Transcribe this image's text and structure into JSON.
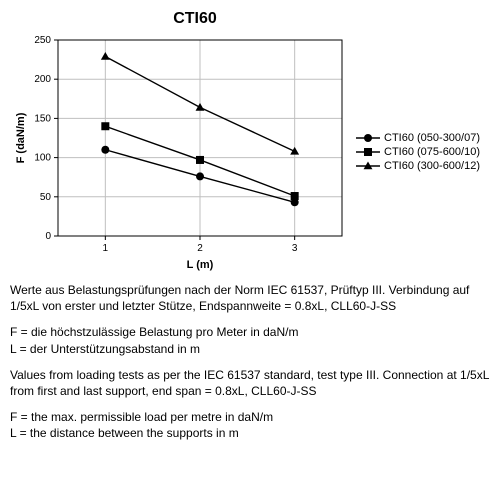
{
  "chart": {
    "title": "CTI60",
    "type": "line",
    "xlabel": "L (m)",
    "ylabel": "F (daN/m)",
    "xlim": [
      0.5,
      3.5
    ],
    "ylim": [
      0,
      250
    ],
    "xtick_step": 1,
    "xticks": [
      1,
      2,
      3
    ],
    "ytick_step": 50,
    "yticks": [
      0,
      50,
      100,
      150,
      200,
      250
    ],
    "title_fontsize": 16,
    "label_fontsize": 11,
    "tick_fontsize": 10,
    "background_color": "#ffffff",
    "grid_color": "#bfbfbf",
    "axis_color": "#000000",
    "line_color": "#000000",
    "line_width": 1.4,
    "marker_size": 8,
    "series": [
      {
        "name": "CTI60 (050-300/07)",
        "marker": "circle",
        "x": [
          1,
          2,
          3
        ],
        "y": [
          110,
          76,
          43
        ]
      },
      {
        "name": "CTI60 (075-600/10)",
        "marker": "square",
        "x": [
          1,
          2,
          3
        ],
        "y": [
          140,
          97,
          51
        ]
      },
      {
        "name": "CTI60 (300-600/12)",
        "marker": "triangle",
        "x": [
          1,
          2,
          3
        ],
        "y": [
          229,
          164,
          108
        ]
      }
    ]
  },
  "notes": {
    "de_p1": "Werte aus Belastungsprüfungen nach der Norm IEC 61537, Prüftyp III. Verbindung auf 1/5xL von erster und letzter Stütze, Endspannweite = 0.8xL, CLL60-J-SS",
    "de_F": "F = die höchstzulässige Belastung pro Meter in daN/m",
    "de_L": "L = der Unterstützungsabstand in m",
    "en_p1": "Values from loading tests as per the IEC 61537 standard, test type III. Connection at 1/5xL from first and last support, end span = 0.8xL, CLL60-J-SS",
    "en_F": "F = the max. permissible load per metre in daN/m",
    "en_L": "L = the distance between the supports in m"
  }
}
